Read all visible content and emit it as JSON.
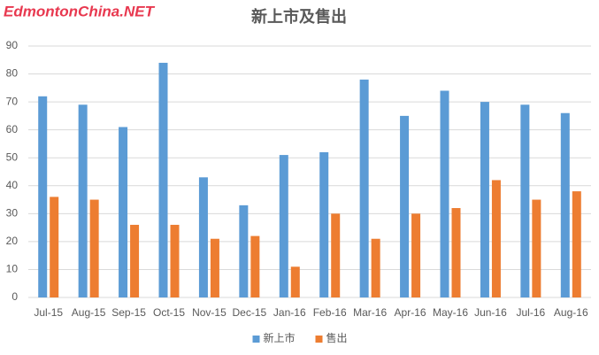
{
  "chart_data": {
    "type": "bar",
    "title": "新上市及售出",
    "watermark": "EdmontonChina.NET",
    "categories": [
      "Jul-15",
      "Aug-15",
      "Sep-15",
      "Oct-15",
      "Nov-15",
      "Dec-15",
      "Jan-16",
      "Feb-16",
      "Mar-16",
      "Apr-16",
      "May-16",
      "Jun-16",
      "Jul-16",
      "Aug-16"
    ],
    "series": [
      {
        "name": "新上市",
        "color": "#5b9bd5",
        "values": [
          72,
          69,
          61,
          84,
          43,
          33,
          51,
          52,
          78,
          65,
          74,
          70,
          69,
          66
        ]
      },
      {
        "name": "售出",
        "color": "#ed7d31",
        "values": [
          36,
          35,
          26,
          26,
          21,
          22,
          11,
          30,
          21,
          30,
          32,
          42,
          35,
          38
        ]
      }
    ],
    "ylim": [
      0,
      90
    ],
    "yticks": [
      0,
      10,
      20,
      30,
      40,
      50,
      60,
      70,
      80,
      90
    ],
    "grid": true,
    "legend": "bottom"
  }
}
